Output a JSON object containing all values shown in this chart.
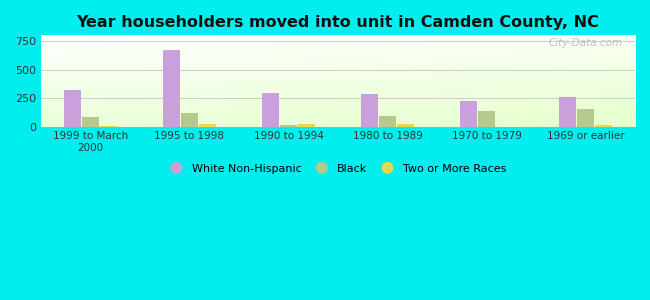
{
  "title": "Year householders moved into unit in Camden County, NC",
  "categories": [
    "1999 to March\n2000",
    "1995 to 1998",
    "1990 to 1994",
    "1980 to 1989",
    "1970 to 1979",
    "1969 or earlier"
  ],
  "series": {
    "White Non-Hispanic": [
      320,
      670,
      295,
      290,
      220,
      262
    ],
    "Black": [
      80,
      115,
      15,
      95,
      135,
      150
    ],
    "Two or More Races": [
      8,
      25,
      22,
      22,
      0,
      18
    ]
  },
  "colors": {
    "White Non-Hispanic": "#c9a0dc",
    "Black": "#b5c98a",
    "Two or More Races": "#e8d84a"
  },
  "ylim": [
    0,
    800
  ],
  "yticks": [
    0,
    250,
    500,
    750
  ],
  "background_color": "#00eeee",
  "bar_width": 0.18,
  "legend_labels": [
    "White Non-Hispanic",
    "Black",
    "Two or More Races"
  ]
}
